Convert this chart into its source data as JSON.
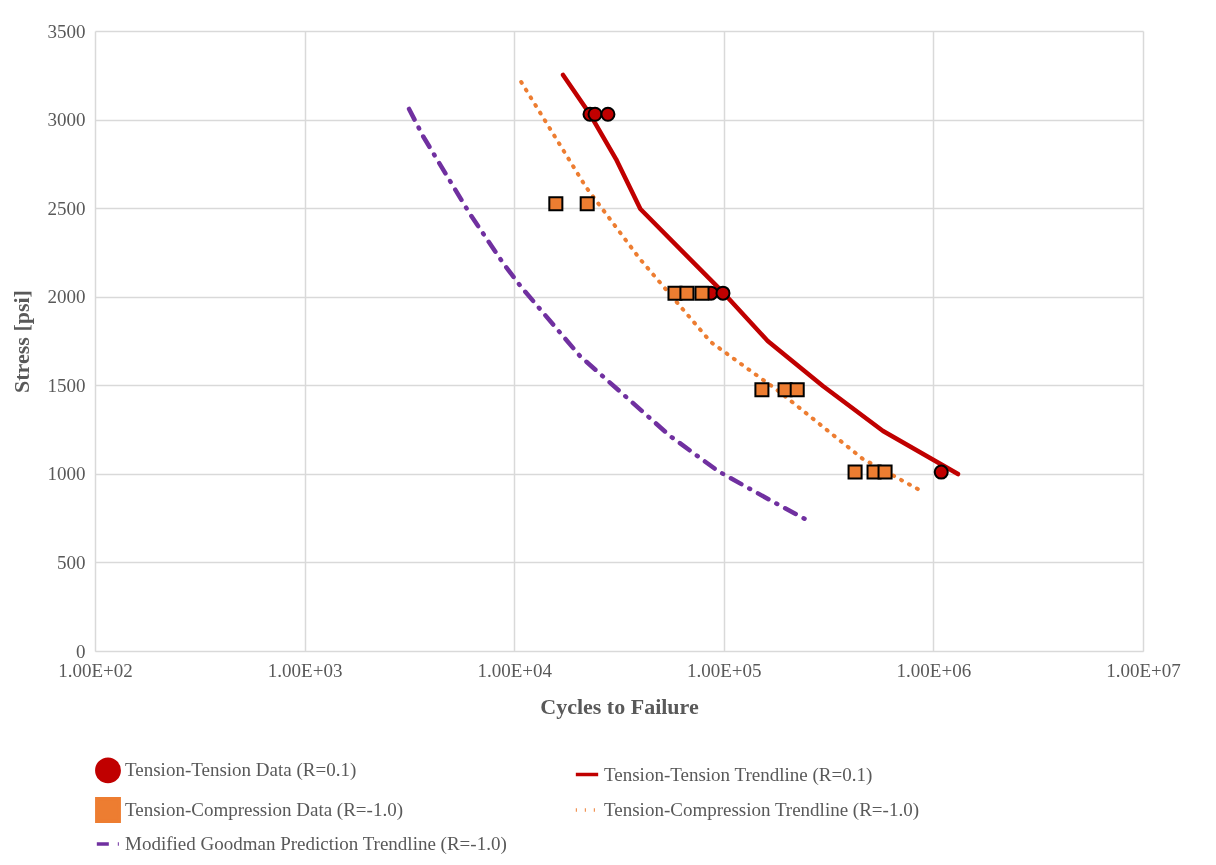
{
  "chart_data": {
    "type": "scatter",
    "xlabel": "Cycles to Failure",
    "ylabel": "Stress [psi]",
    "log": "x",
    "grid": true,
    "legend": "bottom",
    "xlim": [
      100,
      10000000
    ],
    "xticks": [
      {
        "value": 100,
        "label": "1.00E+02"
      },
      {
        "value": 1000,
        "label": "1.00E+03"
      },
      {
        "value": 10000,
        "label": "1.00E+04"
      },
      {
        "value": 100000,
        "label": "1.00E+05"
      },
      {
        "value": 1000000,
        "label": "1.00E+06"
      },
      {
        "value": 10000000,
        "label": "1.00E+07"
      }
    ],
    "ylim": [
      0,
      3500
    ],
    "yticks": [
      0,
      500,
      1000,
      1500,
      2000,
      2500,
      3000,
      3500
    ],
    "series": [
      {
        "name": "Tension-Tension Data (R=0.1)",
        "marker": "circle",
        "color": "#c00000",
        "x": [
          23000,
          24300,
          28000,
          86900,
          99100,
          1090000
        ],
        "values": [
          3030,
          3030,
          3030,
          2020,
          2020,
          1010
        ]
      },
      {
        "name": "Tension-Tension Trendline (R=0.1)",
        "type": "line",
        "line_style": "solid",
        "color": "#c00000",
        "x": [
          17100,
          23000,
          30600,
          40000,
          100000,
          162000,
          297000,
          575000,
          1310000
        ],
        "values": [
          3252,
          3030,
          2777,
          2495,
          2020,
          1750,
          1496,
          1242,
          999
        ]
      },
      {
        "name": "Tension-Compression Data (R=-1.0)",
        "marker": "square",
        "color": "#ed7d31",
        "x": [
          15800,
          22300,
          58500,
          66700,
          78700,
          152000,
          196000,
          224000,
          423000,
          521000,
          588000
        ],
        "values": [
          2525,
          2525,
          2020,
          2020,
          2020,
          1475,
          1475,
          1475,
          1010,
          1010,
          1010
        ]
      },
      {
        "name": "Tension-Compression Trendline (R=-1.0)",
        "type": "line",
        "line_style": "dotted",
        "color": "#ed7d31",
        "x": [
          10800,
          22000,
          39800,
          86700,
          185000,
          461000,
          892000
        ],
        "values": [
          3212,
          2619,
          2213,
          1744,
          1462,
          1084,
          898
        ]
      },
      {
        "name": "Modified Goodman Prediction Trendline (R=-1.0)",
        "type": "line",
        "line_style": "dashed",
        "color": "#7030a0",
        "x": [
          3150,
          3670,
          6150,
          8850,
          10800,
          20600,
          55400,
          93800,
          166000,
          244000
        ],
        "values": [
          3060,
          2907,
          2467,
          2190,
          2055,
          1665,
          1214,
          1016,
          852,
          745
        ]
      }
    ]
  }
}
